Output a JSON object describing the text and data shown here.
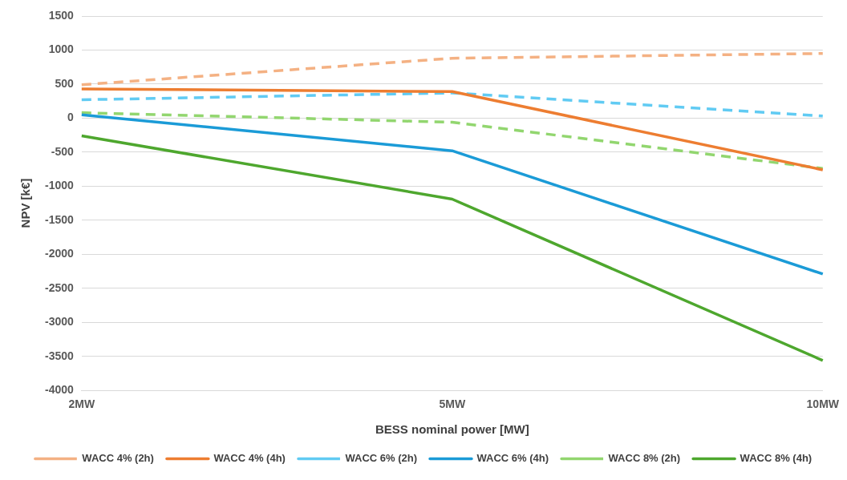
{
  "chart_data": {
    "type": "line",
    "xlabel": "BESS nominal power [MW]",
    "ylabel": "NPV [k€]",
    "categories": [
      "2MW",
      "5MW",
      "10MW"
    ],
    "series": [
      {
        "name": "WACC 4% (2h)",
        "color": "#f4b183",
        "line_style": "dashed",
        "values": [
          490,
          880,
          950
        ]
      },
      {
        "name": "WACC 4% (4h)",
        "color": "#ed7d31",
        "line_style": "solid",
        "values": [
          430,
          390,
          -760
        ]
      },
      {
        "name": "WACC 6% (2h)",
        "color": "#61cbf3",
        "line_style": "dashed",
        "values": [
          270,
          370,
          30
        ]
      },
      {
        "name": "WACC 6% (4h)",
        "color": "#1b9bd7",
        "line_style": "solid",
        "values": [
          50,
          -480,
          -2290
        ]
      },
      {
        "name": "WACC 8% (2h)",
        "color": "#92d66f",
        "line_style": "dashed",
        "values": [
          80,
          -60,
          -740
        ]
      },
      {
        "name": "WACC 8% (4h)",
        "color": "#4ea72e",
        "line_style": "solid",
        "values": [
          -260,
          -1190,
          -3560
        ]
      }
    ],
    "ylim": [
      -4000,
      1500
    ],
    "yticks": [
      -4000,
      -3500,
      -3000,
      -2500,
      -2000,
      -1500,
      -1000,
      -500,
      0,
      500,
      1000,
      1500
    ],
    "grid": "y",
    "legend": "bottom",
    "marker": "none"
  }
}
